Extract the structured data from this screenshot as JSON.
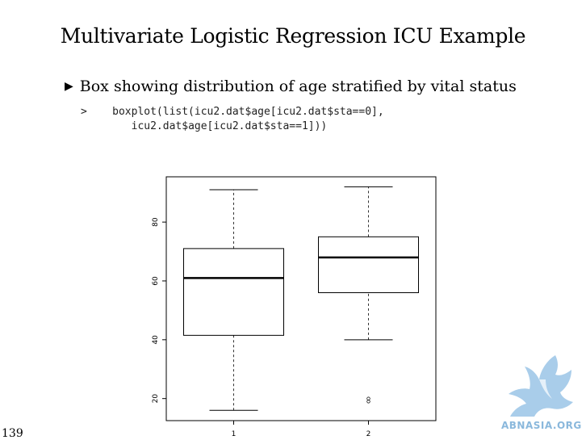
{
  "slide": {
    "title": "Multivariate Logistic Regression ICU Example",
    "bullet": "Box showing distribution of age stratified by vital status",
    "bullet_marker": "▶",
    "code_prompt": ">",
    "code_line1": "boxplot(list(icu2.dat$age[icu2.dat$sta==0],",
    "code_line2": "icu2.dat$age[icu2.dat$sta==1]))",
    "page_number": "139"
  },
  "logo": {
    "text": "ABNASIA.ORG",
    "color": "#8ab8dc"
  },
  "chart_data": {
    "type": "box",
    "categories": [
      "1",
      "2"
    ],
    "boxes": [
      {
        "whisker_low": 16,
        "q1": 41.5,
        "median": 61,
        "q3": 71,
        "whisker_high": 91,
        "outliers": []
      },
      {
        "whisker_low": 40,
        "q1": 56,
        "median": 68,
        "q3": 75,
        "whisker_high": 92,
        "outliers": [
          19.5,
          19.5
        ]
      }
    ],
    "yticks": [
      20,
      40,
      60,
      80
    ],
    "ylim": [
      12.5,
      95.4
    ],
    "xlim": [
      0.5,
      2.5
    ],
    "grid": false,
    "title": "",
    "xlabel": "",
    "ylabel": ""
  }
}
